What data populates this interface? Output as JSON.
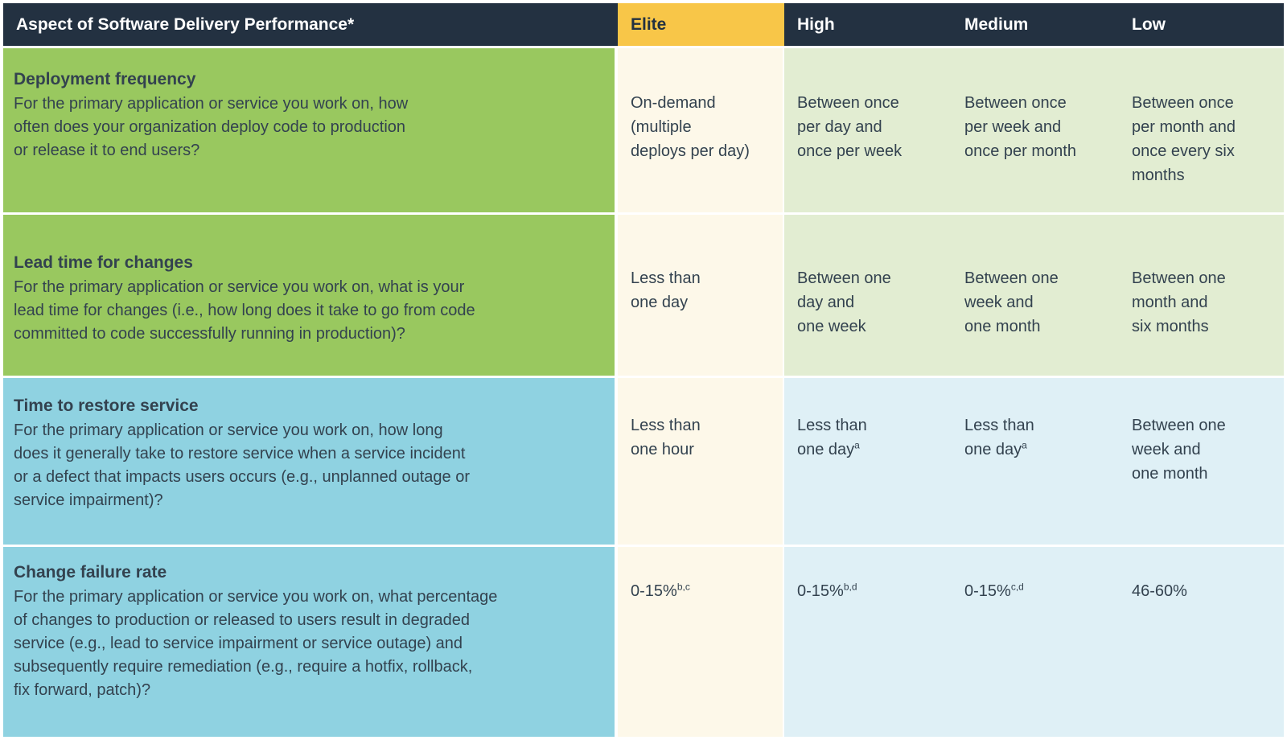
{
  "colors": {
    "header_bg": "#233141",
    "elite_header_bg": "#F8C648",
    "green_row_bg": "#99C85F",
    "green_value_bg": "#E2EDD2",
    "elite_value_bg": "#FDF8E9",
    "blue_row_bg": "#8FD2E1",
    "blue_value_bg": "#DFF0F6",
    "text_dark": "#33424F",
    "header_text": "#FFFFFF"
  },
  "chart_data": {
    "type": "table",
    "columns": [
      "Aspect of Software Delivery Performance*",
      "Elite",
      "High",
      "Medium",
      "Low"
    ],
    "rows": [
      {
        "metric": "Deployment frequency",
        "question": "For the primary application or service you work on, how\noften does your organization deploy code to production\nor release it to end users?",
        "theme": "green",
        "values": {
          "elite": {
            "text": "On-demand\n(multiple\ndeploys per day)",
            "sup": ""
          },
          "high": {
            "text": "Between once\nper day and\nonce per week",
            "sup": ""
          },
          "medium": {
            "text": "Between once\nper week and\nonce per month",
            "sup": ""
          },
          "low": {
            "text": "Between once\nper month and\nonce every six\nmonths",
            "sup": ""
          }
        }
      },
      {
        "metric": "Lead time for changes",
        "question": "For the primary application or service you work on, what is your\nlead time for changes (i.e., how long does it take to go from code\ncommitted to code successfully running in production)?",
        "theme": "green",
        "values": {
          "elite": {
            "text": "Less than\none day",
            "sup": ""
          },
          "high": {
            "text": "Between one\nday and\none week",
            "sup": ""
          },
          "medium": {
            "text": "Between one\nweek and\none month",
            "sup": ""
          },
          "low": {
            "text": "Between one\nmonth and\nsix months",
            "sup": ""
          }
        }
      },
      {
        "metric": "Time to restore service",
        "question": "For the primary application or service you work on, how long\ndoes it generally take to restore service when a service incident\nor a defect that impacts users occurs (e.g., unplanned outage or\nservice impairment)?",
        "theme": "blue",
        "values": {
          "elite": {
            "text": "Less than\none hour",
            "sup": ""
          },
          "high": {
            "text": "Less than\none day",
            "sup": "a"
          },
          "medium": {
            "text": "Less than\none day",
            "sup": "a"
          },
          "low": {
            "text": "Between one\nweek and\none month",
            "sup": ""
          }
        }
      },
      {
        "metric": "Change failure rate",
        "question": "For the primary application or service you work on, what percentage\nof changes to production or released to users result in degraded\nservice (e.g., lead to service impairment or service outage) and\nsubsequently require remediation (e.g., require a hotfix, rollback,\nfix forward, patch)?",
        "theme": "blue",
        "values": {
          "elite": {
            "text": "0-15%",
            "sup": "b,c"
          },
          "high": {
            "text": "0-15%",
            "sup": "b,d"
          },
          "medium": {
            "text": "0-15%",
            "sup": "c,d"
          },
          "low": {
            "text": "46-60%",
            "sup": ""
          }
        }
      }
    ]
  }
}
